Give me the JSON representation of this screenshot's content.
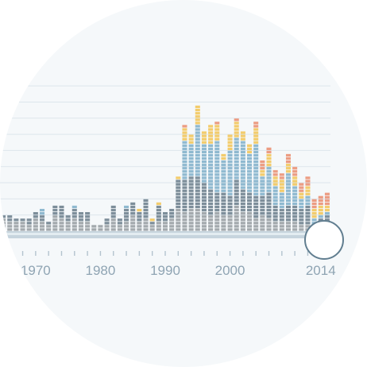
{
  "chart_data": {
    "type": "bar",
    "stacked": true,
    "x": [
      1965,
      1966,
      1967,
      1968,
      1969,
      1970,
      1971,
      1972,
      1973,
      1974,
      1975,
      1976,
      1977,
      1978,
      1979,
      1980,
      1981,
      1982,
      1983,
      1984,
      1985,
      1986,
      1987,
      1988,
      1989,
      1990,
      1991,
      1992,
      1993,
      1994,
      1995,
      1996,
      1997,
      1998,
      1999,
      2000,
      2001,
      2002,
      2003,
      2004,
      2005,
      2006,
      2007,
      2008,
      2009,
      2010,
      2011,
      2012,
      2013,
      2014,
      2015
    ],
    "series": [
      {
        "color": "#a3a9ad",
        "values": [
          4,
          3,
          3,
          3,
          2,
          4,
          3,
          2,
          5,
          4,
          3,
          4,
          3,
          3,
          2,
          2,
          2,
          4,
          2,
          3,
          5,
          3,
          4,
          2,
          3,
          3,
          4,
          7,
          6,
          7,
          7,
          6,
          5,
          6,
          5,
          5,
          8,
          6,
          6,
          4,
          5,
          4,
          3,
          3,
          3,
          3,
          2,
          2,
          1,
          1,
          2
        ]
      },
      {
        "color": "#7d8e9a",
        "values": [
          1,
          2,
          1,
          1,
          2,
          2,
          2,
          1,
          3,
          4,
          2,
          3,
          3,
          3,
          0,
          0,
          2,
          4,
          2,
          4,
          4,
          3,
          6,
          1,
          5,
          3,
          3,
          9,
          10,
          10,
          10,
          9,
          8,
          6,
          7,
          6,
          8,
          7,
          6,
          7,
          6,
          8,
          5,
          4,
          5,
          5,
          5,
          6,
          1,
          3,
          3
        ]
      },
      {
        "color": "#8fb9d0",
        "values": [
          0,
          0,
          0,
          0,
          0,
          0,
          2,
          0,
          0,
          0,
          0,
          1,
          0,
          0,
          0,
          0,
          0,
          0,
          0,
          1,
          0,
          0,
          0,
          0,
          0,
          0,
          0,
          0,
          12,
          10,
          16,
          12,
          14,
          16,
          10,
          14,
          13,
          15,
          12,
          16,
          6,
          8,
          6,
          5,
          10,
          6,
          3,
          3,
          2,
          1,
          1
        ]
      },
      {
        "color": "#f3cc6c",
        "values": [
          0,
          0,
          0,
          0,
          0,
          0,
          0,
          0,
          0,
          0,
          0,
          0,
          0,
          0,
          0,
          0,
          0,
          0,
          0,
          0,
          0,
          1,
          0,
          1,
          1,
          0,
          0,
          1,
          4,
          3,
          6,
          4,
          6,
          5,
          2,
          5,
          5,
          3,
          3,
          5,
          2,
          4,
          3,
          4,
          3,
          3,
          2,
          3,
          3,
          3,
          2
        ]
      },
      {
        "color": "#ec9c82",
        "values": [
          0,
          0,
          0,
          0,
          0,
          0,
          0,
          0,
          0,
          0,
          0,
          0,
          0,
          0,
          0,
          0,
          0,
          0,
          0,
          0,
          0,
          0,
          0,
          0,
          0,
          0,
          0,
          0,
          1,
          0,
          0,
          0,
          0,
          1,
          0,
          0,
          1,
          0,
          0,
          2,
          3,
          2,
          2,
          2,
          3,
          3,
          3,
          3,
          3,
          3,
          4
        ]
      }
    ],
    "xlim": [
      1964.5,
      2015.5
    ],
    "ylim": [
      0,
      47
    ],
    "xticks": [
      1970,
      1980,
      1990,
      2000,
      2014
    ],
    "grid": true
  }
}
